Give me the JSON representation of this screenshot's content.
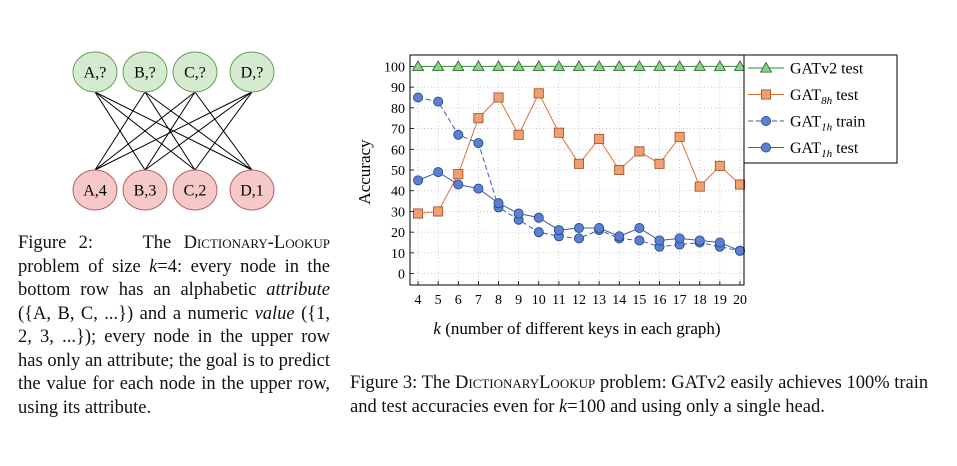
{
  "graph": {
    "top_nodes": [
      "A,?",
      "B,?",
      "C,?",
      "D,?"
    ],
    "bottom_nodes": [
      "A,4",
      "B,3",
      "C,2",
      "D,1"
    ],
    "colors": {
      "top_fill": "#d5ebcf",
      "top_stroke": "#6a9a60",
      "bottom_fill": "#f6c8c8",
      "bottom_stroke": "#b26060"
    }
  },
  "caption_left": {
    "fig_label": "Figure 2:",
    "name": "Dictionary-Lookup",
    "t1": " problem of size ",
    "k": "k",
    "t2": "=4: every node in the bottom row has an alphabetic ",
    "attribute_word": "attribute",
    "t3": " ({A, B, C, ...}) and a numeric ",
    "value_word": "value",
    "t4": " ({1, 2, 3, ...}); every node in the upper row has only an attribute; the goal is to predict the value for each node in the upper row, using its attribute."
  },
  "caption_right": {
    "fig_label": "Figure 3: The ",
    "name": "DictionaryLookup",
    "t1": " problem: GATv2 easily achieves 100% train and test accuracies even for ",
    "k": "k",
    "t2": "=100 and using only a single head."
  },
  "chart_data": {
    "type": "line",
    "x": [
      4,
      5,
      6,
      7,
      8,
      9,
      10,
      11,
      12,
      13,
      14,
      15,
      16,
      17,
      18,
      19,
      20
    ],
    "x_tick_labels": [
      "4",
      "5",
      "6",
      "7",
      "8",
      "9",
      "10",
      "11",
      "12",
      "13",
      "14",
      "15",
      "16",
      "17",
      "18",
      "19",
      "20"
    ],
    "xlabel_var": "k",
    "xlabel_rest": " (number of different keys in each graph)",
    "ylabel": "Accuracy",
    "y_ticks": [
      0,
      10,
      20,
      30,
      40,
      50,
      60,
      70,
      80,
      90,
      100
    ],
    "ylim": [
      0,
      100
    ],
    "grid": true,
    "legend_position": "top-right",
    "series": [
      {
        "name": "GATv2 test",
        "legend_base": "GATv2 test",
        "legend_sub": "",
        "legend_suffix": "",
        "marker": "triangle",
        "dash": "solid",
        "color": "#2e8b2e",
        "fill": "#8fd08a",
        "values": [
          100,
          100,
          100,
          100,
          100,
          100,
          100,
          100,
          100,
          100,
          100,
          100,
          100,
          100,
          100,
          100,
          100
        ]
      },
      {
        "name": "GAT8h test",
        "legend_base": "GAT",
        "legend_sub": "8h",
        "legend_suffix": " test",
        "marker": "square",
        "dash": "solid",
        "color": "#e0703a",
        "fill": "#f0a070",
        "values": [
          29,
          30,
          48,
          75,
          85,
          67,
          87,
          68,
          53,
          65,
          50,
          59,
          53,
          66,
          42,
          52,
          43
        ]
      },
      {
        "name": "GAT1h train",
        "legend_base": "GAT",
        "legend_sub": "1h",
        "legend_suffix": " train",
        "marker": "circle",
        "dash": "dashed",
        "color": "#3a5fae",
        "fill": "#5b80cf",
        "values": [
          85,
          83,
          67,
          63,
          32,
          26,
          20,
          18,
          17,
          21,
          17,
          16,
          13,
          14,
          15,
          13,
          11
        ]
      },
      {
        "name": "GAT1h test",
        "legend_base": "GAT",
        "legend_sub": "1h",
        "legend_suffix": " test",
        "marker": "circle",
        "dash": "solid",
        "color": "#3a5fae",
        "fill": "#5b80cf",
        "values": [
          45,
          49,
          43,
          41,
          34,
          29,
          27,
          21,
          22,
          22,
          18,
          22,
          16,
          17,
          16,
          15,
          11
        ]
      }
    ]
  }
}
